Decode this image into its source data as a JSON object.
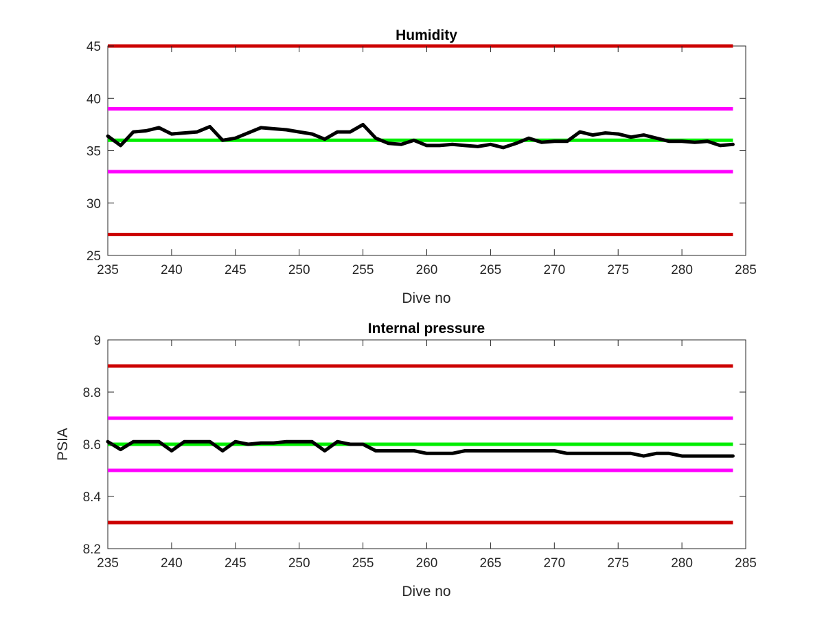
{
  "chart_data": [
    {
      "type": "line",
      "title": "Humidity",
      "xlabel": "Dive no",
      "ylabel": "",
      "xlim": [
        235,
        285
      ],
      "ylim": [
        25,
        45
      ],
      "xticks": [
        235,
        240,
        245,
        250,
        255,
        260,
        265,
        270,
        275,
        280,
        285
      ],
      "xtick_labels": [
        "235",
        "240",
        "245",
        "250",
        "255",
        "260",
        "265",
        "270",
        "275",
        "280",
        "285"
      ],
      "yticks": [
        25,
        30,
        35,
        40,
        45
      ],
      "ytick_labels": [
        "25",
        "30",
        "35",
        "40",
        "45"
      ],
      "grid": false,
      "reference_lines": [
        {
          "y": 45,
          "x_start": 235,
          "x_end": 284,
          "color": "#cc0000"
        },
        {
          "y": 39,
          "x_start": 235,
          "x_end": 284,
          "color": "#ff00ff"
        },
        {
          "y": 36,
          "x_start": 235,
          "x_end": 284,
          "color": "#00ee00"
        },
        {
          "y": 33,
          "x_start": 235,
          "x_end": 284,
          "color": "#ff00ff"
        },
        {
          "y": 27,
          "x_start": 235,
          "x_end": 284,
          "color": "#cc0000"
        }
      ],
      "series": [
        {
          "color": "#000000",
          "x": [
            235,
            236,
            237,
            238,
            239,
            240,
            241,
            242,
            243,
            244,
            245,
            246,
            247,
            248,
            249,
            250,
            251,
            252,
            253,
            254,
            255,
            256,
            257,
            258,
            259,
            260,
            261,
            262,
            263,
            264,
            265,
            266,
            267,
            268,
            269,
            270,
            271,
            272,
            273,
            274,
            275,
            276,
            277,
            278,
            279,
            280,
            281,
            282,
            283,
            284
          ],
          "values": [
            36.4,
            35.5,
            36.8,
            36.9,
            37.2,
            36.6,
            36.7,
            36.8,
            37.3,
            36.0,
            36.2,
            36.7,
            37.2,
            37.1,
            37.0,
            36.8,
            36.6,
            36.1,
            36.8,
            36.8,
            37.5,
            36.2,
            35.7,
            35.6,
            36.0,
            35.5,
            35.5,
            35.6,
            35.5,
            35.4,
            35.6,
            35.3,
            35.7,
            36.2,
            35.8,
            35.9,
            35.9,
            36.8,
            36.5,
            36.7,
            36.6,
            36.3,
            36.5,
            36.2,
            35.9,
            35.9,
            35.8,
            35.9,
            35.5,
            35.6
          ]
        }
      ]
    },
    {
      "type": "line",
      "title": "Internal pressure",
      "xlabel": "Dive no",
      "ylabel": "PSIA",
      "xlim": [
        235,
        285
      ],
      "ylim": [
        8.2,
        9
      ],
      "xticks": [
        235,
        240,
        245,
        250,
        255,
        260,
        265,
        270,
        275,
        280,
        285
      ],
      "xtick_labels": [
        "235",
        "240",
        "245",
        "250",
        "255",
        "260",
        "265",
        "270",
        "275",
        "280",
        "285"
      ],
      "yticks": [
        8.2,
        8.4,
        8.6,
        8.8,
        9
      ],
      "ytick_labels": [
        "8.2",
        "8.4",
        "8.6",
        "8.8",
        "9"
      ],
      "grid": false,
      "reference_lines": [
        {
          "y": 8.9,
          "x_start": 235,
          "x_end": 284,
          "color": "#cc0000"
        },
        {
          "y": 8.7,
          "x_start": 235,
          "x_end": 284,
          "color": "#ff00ff"
        },
        {
          "y": 8.6,
          "x_start": 235,
          "x_end": 284,
          "color": "#00ee00"
        },
        {
          "y": 8.5,
          "x_start": 235,
          "x_end": 284,
          "color": "#ff00ff"
        },
        {
          "y": 8.3,
          "x_start": 235,
          "x_end": 284,
          "color": "#cc0000"
        }
      ],
      "series": [
        {
          "color": "#000000",
          "x": [
            235,
            236,
            237,
            238,
            239,
            240,
            241,
            242,
            243,
            244,
            245,
            246,
            247,
            248,
            249,
            250,
            251,
            252,
            253,
            254,
            255,
            256,
            257,
            258,
            259,
            260,
            261,
            262,
            263,
            264,
            265,
            266,
            267,
            268,
            269,
            270,
            271,
            272,
            273,
            274,
            275,
            276,
            277,
            278,
            279,
            280,
            281,
            282,
            283,
            284
          ],
          "values": [
            8.61,
            8.58,
            8.61,
            8.61,
            8.61,
            8.575,
            8.61,
            8.61,
            8.61,
            8.575,
            8.61,
            8.6,
            8.605,
            8.605,
            8.61,
            8.61,
            8.61,
            8.575,
            8.61,
            8.6,
            8.6,
            8.575,
            8.575,
            8.575,
            8.575,
            8.565,
            8.565,
            8.565,
            8.575,
            8.575,
            8.575,
            8.575,
            8.575,
            8.575,
            8.575,
            8.575,
            8.565,
            8.565,
            8.565,
            8.565,
            8.565,
            8.565,
            8.555,
            8.565,
            8.565,
            8.555,
            8.555,
            8.555,
            8.555,
            8.555
          ]
        }
      ]
    }
  ]
}
